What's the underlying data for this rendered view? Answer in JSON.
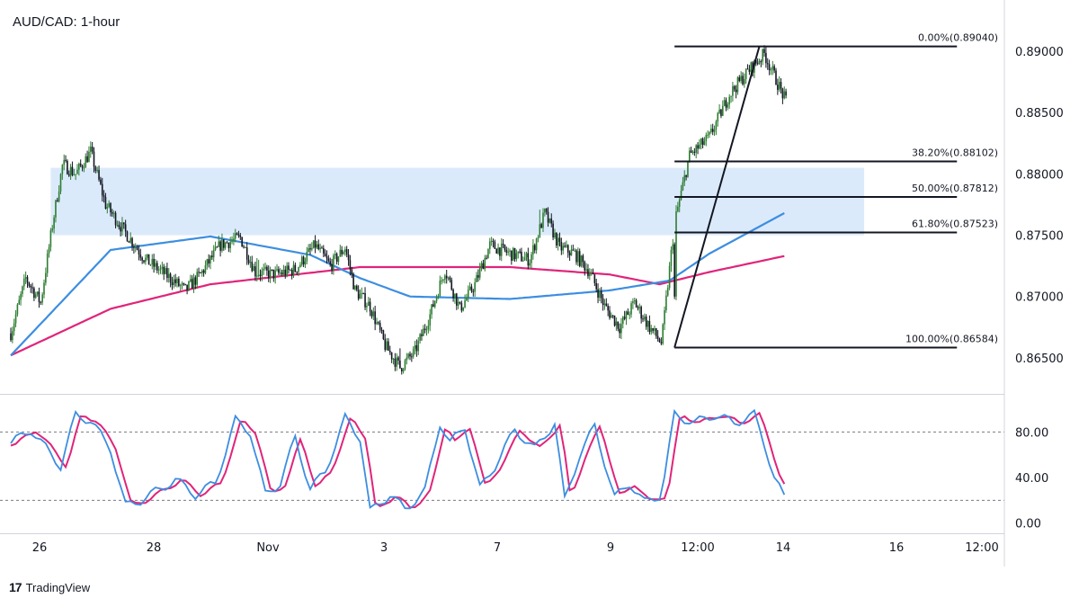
{
  "chart_data": [
    {
      "type": "candlestick",
      "title": "AUD/CAD: 1-hour",
      "x_tick_labels": [
        "26",
        "28",
        "Nov",
        "3",
        "7",
        "9",
        "12:00",
        "14",
        "16",
        "12:00"
      ],
      "y_tick_labels": [
        "0.89000",
        "0.88500",
        "0.88000",
        "0.87500",
        "0.87000",
        "0.86500"
      ],
      "y_ticks": [
        0.89,
        0.885,
        0.88,
        0.875,
        0.87,
        0.865
      ],
      "ylim": [
        0.8625,
        0.8936
      ],
      "price_path": [
        [
          0,
          0.867
        ],
        [
          1.5,
          0.8715
        ],
        [
          3,
          0.8695
        ],
        [
          4.2,
          0.876
        ],
        [
          5.2,
          0.8808
        ],
        [
          6.5,
          0.88
        ],
        [
          8,
          0.8818
        ],
        [
          9.5,
          0.8775
        ],
        [
          11.5,
          0.8752
        ],
        [
          13.5,
          0.873
        ],
        [
          15.5,
          0.8718
        ],
        [
          17.5,
          0.8705
        ],
        [
          19,
          0.8718
        ],
        [
          21,
          0.8742
        ],
        [
          23,
          0.8748
        ],
        [
          24.5,
          0.872
        ],
        [
          26.5,
          0.8718
        ],
        [
          28.5,
          0.8722
        ],
        [
          30.5,
          0.8742
        ],
        [
          32,
          0.8725
        ],
        [
          33.5,
          0.874
        ],
        [
          34.5,
          0.8705
        ],
        [
          36,
          0.8692
        ],
        [
          37.5,
          0.866
        ],
        [
          39,
          0.8642
        ],
        [
          40.5,
          0.8655
        ],
        [
          42,
          0.8685
        ],
        [
          43.5,
          0.8722
        ],
        [
          45,
          0.869
        ],
        [
          46.5,
          0.871
        ],
        [
          48,
          0.8742
        ],
        [
          50,
          0.8735
        ],
        [
          52,
          0.873
        ],
        [
          53.5,
          0.8768
        ],
        [
          55,
          0.874
        ],
        [
          56.5,
          0.8735
        ],
        [
          58,
          0.872
        ],
        [
          59.5,
          0.8692
        ],
        [
          61,
          0.8675
        ],
        [
          62.5,
          0.8695
        ],
        [
          64,
          0.8675
        ],
        [
          65.2,
          0.8662
        ],
        [
          66.5,
          0.876
        ],
        [
          68,
          0.8815
        ],
        [
          70,
          0.883
        ],
        [
          72,
          0.8865
        ],
        [
          74,
          0.8885
        ],
        [
          75.5,
          0.8898
        ],
        [
          76.5,
          0.888
        ],
        [
          77.5,
          0.8862
        ]
      ],
      "ma_blue": [
        [
          0,
          0.8652
        ],
        [
          10,
          0.8738
        ],
        [
          20,
          0.8749
        ],
        [
          30,
          0.8734
        ],
        [
          35,
          0.8715
        ],
        [
          40,
          0.87
        ],
        [
          50,
          0.8698
        ],
        [
          60,
          0.8705
        ],
        [
          66,
          0.8713
        ],
        [
          70,
          0.8735
        ],
        [
          77.5,
          0.8768
        ]
      ],
      "ma_pink": [
        [
          0,
          0.8652
        ],
        [
          10,
          0.869
        ],
        [
          20,
          0.871
        ],
        [
          35,
          0.8724
        ],
        [
          50,
          0.8724
        ],
        [
          60,
          0.8718
        ],
        [
          65,
          0.871
        ],
        [
          70,
          0.872
        ],
        [
          77.5,
          0.8733
        ]
      ],
      "fib_levels": [
        {
          "label": "0.00%(0.89040)",
          "value": 0.8904
        },
        {
          "label": "38.20%(0.88102)",
          "value": 0.88102
        },
        {
          "label": "50.00%(0.87812)",
          "value": 0.87812
        },
        {
          "label": "61.80%(0.87523)",
          "value": 0.87523
        },
        {
          "label": "100.00%(0.86584)",
          "value": 0.86584
        }
      ],
      "zone": {
        "low": 0.875,
        "high": 0.8805,
        "x_start": 4.0,
        "x_end": 85.5
      },
      "fib_x_start": 66.5,
      "fib_x_end": 77.5,
      "trendline": [
        [
          66.5,
          0.86584
        ],
        [
          75.0,
          0.8904
        ]
      ],
      "colors": {
        "candle_up": "#2e7d32",
        "candle_down": "#131722",
        "ma_fast": "#3d8ee0",
        "ma_slow": "#e0247a",
        "zone": "#dbeafb",
        "fib": "#131722"
      }
    },
    {
      "type": "line",
      "y_tick_labels": [
        "80.00",
        "40.00",
        "0.00"
      ],
      "y_ticks": [
        80,
        40,
        0
      ],
      "ylim": [
        -5,
        100
      ],
      "guide_lines": [
        80,
        20
      ],
      "k_anchor": [
        [
          0,
          70
        ],
        [
          2,
          82
        ],
        [
          5,
          50
        ],
        [
          6.5,
          95
        ],
        [
          8,
          90
        ],
        [
          10,
          65
        ],
        [
          11.5,
          15
        ],
        [
          13,
          20
        ],
        [
          15,
          30
        ],
        [
          16.5,
          38
        ],
        [
          18.5,
          25
        ],
        [
          20.5,
          35
        ],
        [
          22.5,
          90
        ],
        [
          24,
          80
        ],
        [
          25.5,
          25
        ],
        [
          27,
          35
        ],
        [
          28.5,
          75
        ],
        [
          30,
          30
        ],
        [
          31.5,
          45
        ],
        [
          33.5,
          92
        ],
        [
          35,
          75
        ],
        [
          36,
          10
        ],
        [
          38,
          25
        ],
        [
          39.5,
          12
        ],
        [
          41.5,
          28
        ],
        [
          43,
          88
        ],
        [
          44,
          70
        ],
        [
          45.5,
          85
        ],
        [
          47,
          30
        ],
        [
          48.5,
          50
        ],
        [
          50.5,
          82
        ],
        [
          52.5,
          65
        ],
        [
          54.5,
          88
        ],
        [
          55.5,
          20
        ],
        [
          57,
          60
        ],
        [
          58.5,
          85
        ],
        [
          60.5,
          22
        ],
        [
          62,
          35
        ],
        [
          63.5,
          18
        ],
        [
          65.2,
          25
        ],
        [
          66.5,
          95
        ],
        [
          68.5,
          88
        ],
        [
          70.5,
          95
        ],
        [
          72.5,
          88
        ],
        [
          74.5,
          95
        ],
        [
          75.5,
          70
        ],
        [
          76.5,
          40
        ],
        [
          77.5,
          22
        ]
      ]
    }
  ],
  "branding": {
    "logo": "17",
    "name": "TradingView"
  }
}
